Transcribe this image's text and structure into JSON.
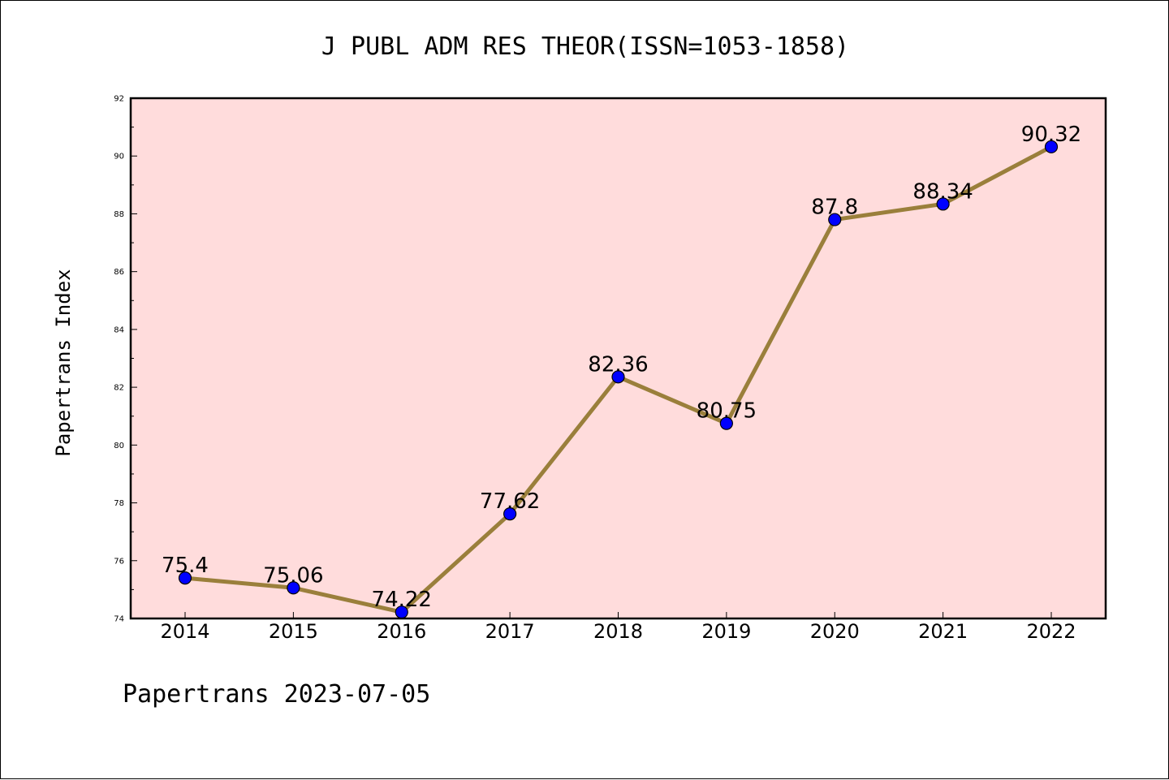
{
  "chart_data": {
    "type": "line",
    "title": "J PUBL ADM RES THEOR(ISSN=1053-1858)",
    "xlabel": "",
    "ylabel": "Papertrans Index",
    "categories": [
      "2014",
      "2015",
      "2016",
      "2017",
      "2018",
      "2019",
      "2020",
      "2021",
      "2022"
    ],
    "series": [
      {
        "values": [
          75.4,
          75.06,
          74.22,
          77.62,
          82.36,
          80.75,
          87.8,
          88.34,
          90.32
        ],
        "labels": [
          "75.4",
          "75.06",
          "74.22",
          "77.62",
          "82.36",
          "80.75",
          "87.8",
          "88.34",
          "90.32"
        ]
      }
    ],
    "ylim": [
      74,
      92
    ],
    "yticks": [
      "74",
      "76",
      "78",
      "80",
      "82",
      "84",
      "86",
      "88",
      "90",
      "92"
    ],
    "grid": false,
    "colors": {
      "line": "#9a7f3b",
      "marker": "#0000ff",
      "plot_background": "#ffdcdc",
      "axes": "#000000"
    }
  },
  "footer": {
    "text": "Papertrans 2023-07-05"
  }
}
